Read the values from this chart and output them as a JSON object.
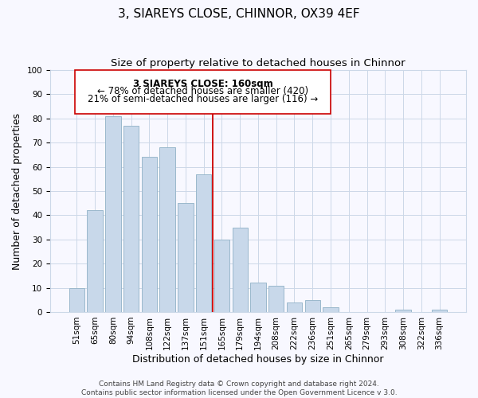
{
  "title": "3, SIAREYS CLOSE, CHINNOR, OX39 4EF",
  "subtitle": "Size of property relative to detached houses in Chinnor",
  "xlabel": "Distribution of detached houses by size in Chinnor",
  "ylabel": "Number of detached properties",
  "bar_labels": [
    "51sqm",
    "65sqm",
    "80sqm",
    "94sqm",
    "108sqm",
    "122sqm",
    "137sqm",
    "151sqm",
    "165sqm",
    "179sqm",
    "194sqm",
    "208sqm",
    "222sqm",
    "236sqm",
    "251sqm",
    "265sqm",
    "279sqm",
    "293sqm",
    "308sqm",
    "322sqm",
    "336sqm"
  ],
  "bar_values": [
    10,
    42,
    81,
    77,
    64,
    68,
    45,
    57,
    30,
    35,
    12,
    11,
    4,
    5,
    2,
    0,
    0,
    0,
    1,
    0,
    1
  ],
  "bar_color": "#c8d8ea",
  "bar_edge_color": "#9ab8cc",
  "vline_x": 7.5,
  "vline_color": "#cc0000",
  "ylim": [
    0,
    100
  ],
  "annotation_text_line1": "3 SIAREYS CLOSE: 160sqm",
  "annotation_text_line2": "← 78% of detached houses are smaller (420)",
  "annotation_text_line3": "21% of semi-detached houses are larger (116) →",
  "footer_line1": "Contains HM Land Registry data © Crown copyright and database right 2024.",
  "footer_line2": "Contains public sector information licensed under the Open Government Licence v 3.0.",
  "title_fontsize": 11,
  "subtitle_fontsize": 9.5,
  "xlabel_fontsize": 9,
  "ylabel_fontsize": 9,
  "tick_fontsize": 7.5,
  "annotation_fontsize": 8.5,
  "footer_fontsize": 6.5,
  "background_color": "#f8f8ff",
  "grid_color": "#ccd8e8"
}
